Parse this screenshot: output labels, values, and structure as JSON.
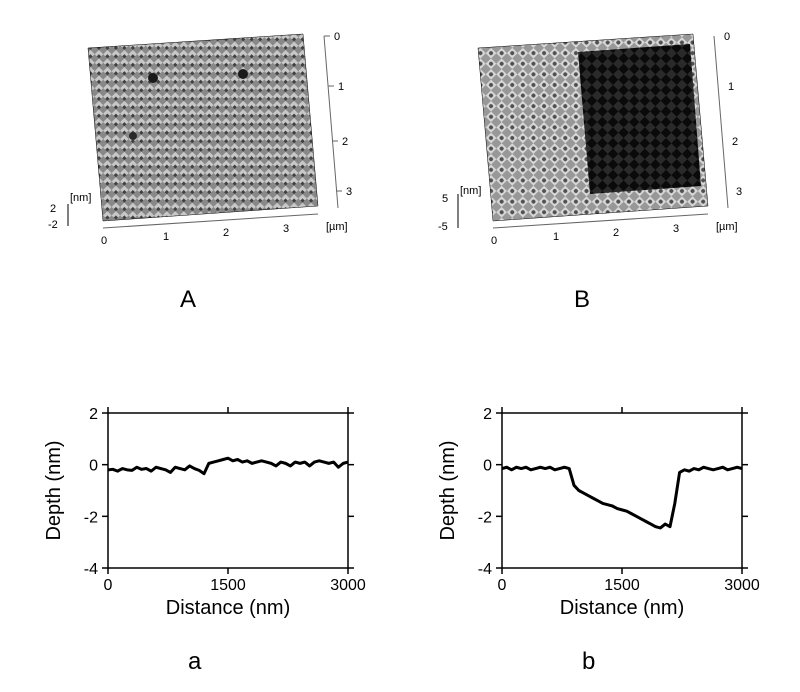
{
  "panel_A": {
    "label": "A",
    "z_axis_label": "[nm]",
    "x_axis_label": "[µm]",
    "x_ticks": [
      "0",
      "1",
      "2",
      "3"
    ],
    "right_ticks": [
      "0",
      "1",
      "2",
      "3"
    ],
    "z_ticks": [
      "-2",
      "2"
    ],
    "has_dark_region": false,
    "surface_base_color": "#888888",
    "surface_light": "#c8c8c8",
    "surface_dark": "#404040"
  },
  "panel_B": {
    "label": "B",
    "z_axis_label": "[nm]",
    "x_axis_label": "[µm]",
    "x_ticks": [
      "0",
      "1",
      "2",
      "3"
    ],
    "right_ticks": [
      "0",
      "1",
      "2",
      "3"
    ],
    "z_ticks": [
      "5",
      "-5"
    ],
    "has_dark_region": true,
    "surface_base_color": "#989898",
    "surface_light": "#d8d8d8",
    "surface_dark": "#505050",
    "dark_region_color": "#0a0a0a"
  },
  "chart_a": {
    "label": "a",
    "xlabel": "Distance (nm)",
    "ylabel": "Depth (nm)",
    "x_ticks": [
      0,
      1500,
      3000
    ],
    "y_ticks": [
      -4,
      -2,
      0,
      2
    ],
    "xlim": [
      0,
      3000
    ],
    "ylim": [
      -4,
      2
    ],
    "line_color": "#000000",
    "line_width": 3,
    "background": "#ffffff",
    "data_y": [
      -0.2,
      -0.18,
      -0.25,
      -0.15,
      -0.2,
      -0.22,
      -0.1,
      -0.18,
      -0.15,
      -0.25,
      -0.1,
      -0.15,
      -0.2,
      -0.3,
      -0.1,
      -0.15,
      -0.2,
      -0.05,
      -0.15,
      -0.22,
      -0.35,
      0.05,
      0.1,
      0.15,
      0.2,
      0.25,
      0.15,
      0.2,
      0.1,
      0.15,
      0.05,
      0.1,
      0.15,
      0.1,
      0.05,
      -0.05,
      0.1,
      0.05,
      -0.05,
      0.1,
      0.05,
      0.1,
      -0.05,
      0.1,
      0.15,
      0.1,
      0.05,
      0.1,
      -0.1,
      0.05,
      0.1
    ]
  },
  "chart_b": {
    "label": "b",
    "xlabel": "Distance (nm)",
    "ylabel": "Depth (nm)",
    "x_ticks": [
      0,
      1500,
      3000
    ],
    "y_ticks": [
      -4,
      -2,
      0,
      2
    ],
    "xlim": [
      0,
      3000
    ],
    "ylim": [
      -4,
      2
    ],
    "line_color": "#000000",
    "line_width": 3,
    "background": "#ffffff",
    "data_y": [
      -0.15,
      -0.1,
      -0.2,
      -0.1,
      -0.15,
      -0.1,
      -0.2,
      -0.15,
      -0.1,
      -0.15,
      -0.1,
      -0.2,
      -0.15,
      -0.1,
      -0.15,
      -0.8,
      -1.0,
      -1.1,
      -1.2,
      -1.3,
      -1.4,
      -1.5,
      -1.55,
      -1.6,
      -1.7,
      -1.75,
      -1.8,
      -1.9,
      -2.0,
      -2.1,
      -2.2,
      -2.3,
      -2.4,
      -2.45,
      -2.3,
      -2.4,
      -1.5,
      -0.3,
      -0.2,
      -0.25,
      -0.15,
      -0.2,
      -0.1,
      -0.15,
      -0.2,
      -0.15,
      -0.1,
      -0.2,
      -0.15,
      -0.1,
      -0.15
    ]
  },
  "label_fontsize": 24,
  "axis_label_fontsize": 20,
  "tick_fontsize": 16
}
